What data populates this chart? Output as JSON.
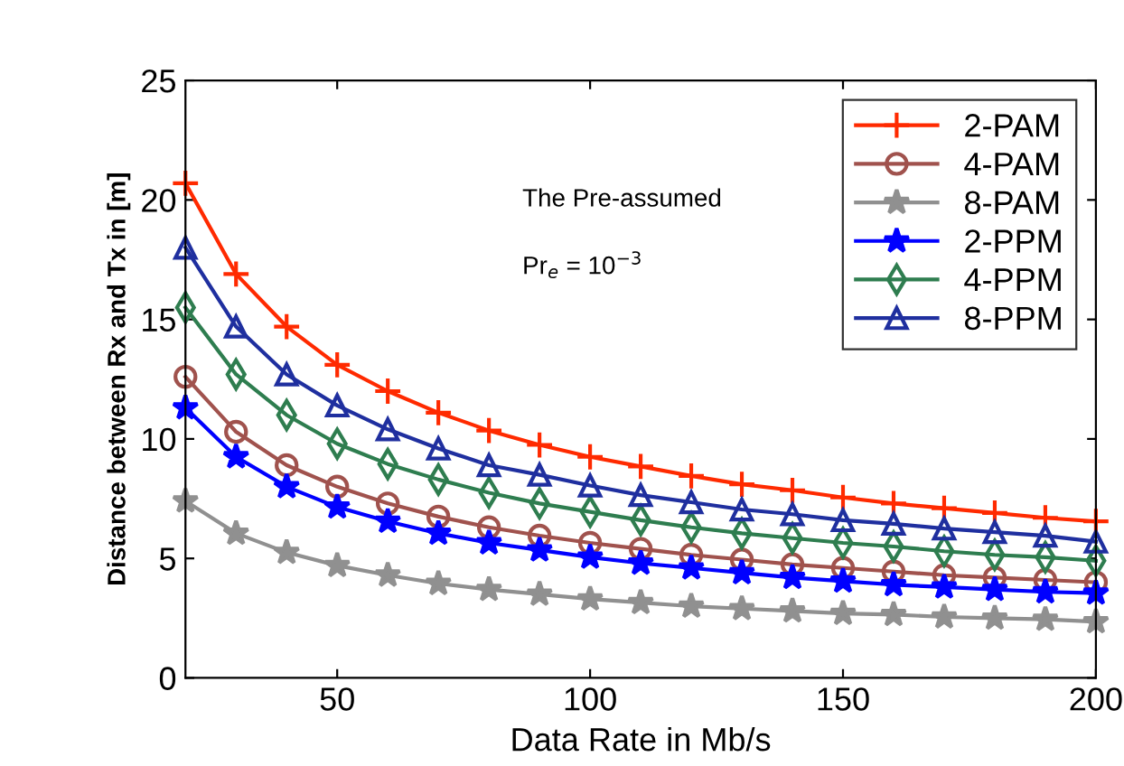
{
  "chart_data": {
    "type": "line",
    "xlabel": "Data Rate in Mb/s",
    "ylabel": "Distance between Rx and Tx in [m]",
    "x": [
      20,
      30,
      40,
      50,
      60,
      70,
      80,
      90,
      100,
      110,
      120,
      130,
      140,
      150,
      160,
      170,
      180,
      190,
      200
    ],
    "series": [
      {
        "name": "2-PAM",
        "color": "#ff2a00",
        "marker": "cross",
        "values": [
          20.7,
          16.9,
          14.7,
          13.1,
          12.0,
          11.1,
          10.35,
          9.75,
          9.25,
          8.85,
          8.45,
          8.1,
          7.85,
          7.55,
          7.3,
          7.1,
          6.9,
          6.7,
          6.55
        ]
      },
      {
        "name": "4-PAM",
        "color": "#a0524d",
        "marker": "circle",
        "values": [
          12.6,
          10.3,
          8.9,
          8.0,
          7.3,
          6.75,
          6.3,
          5.95,
          5.65,
          5.4,
          5.15,
          4.95,
          4.75,
          4.6,
          4.45,
          4.3,
          4.2,
          4.1,
          4.0
        ]
      },
      {
        "name": "8-PAM",
        "color": "#909090",
        "marker": "star",
        "values": [
          7.4,
          6.05,
          5.25,
          4.7,
          4.3,
          3.95,
          3.7,
          3.5,
          3.3,
          3.15,
          3.0,
          2.9,
          2.8,
          2.7,
          2.65,
          2.55,
          2.5,
          2.45,
          2.35
        ]
      },
      {
        "name": "2-PPM",
        "color": "#0000ff",
        "marker": "star",
        "values": [
          11.3,
          9.25,
          8.0,
          7.15,
          6.55,
          6.05,
          5.65,
          5.35,
          5.05,
          4.8,
          4.6,
          4.4,
          4.2,
          4.05,
          3.9,
          3.8,
          3.7,
          3.6,
          3.55
        ]
      },
      {
        "name": "4-PPM",
        "color": "#2e7d4f",
        "marker": "diamond",
        "values": [
          15.5,
          12.7,
          11.0,
          9.8,
          8.95,
          8.3,
          7.75,
          7.3,
          6.95,
          6.6,
          6.3,
          6.05,
          5.85,
          5.65,
          5.5,
          5.3,
          5.15,
          5.05,
          4.9
        ]
      },
      {
        "name": "8-PPM",
        "color": "#1f2f9f",
        "marker": "triangle",
        "values": [
          18.0,
          14.7,
          12.7,
          11.4,
          10.4,
          9.6,
          8.9,
          8.5,
          8.05,
          7.65,
          7.35,
          7.05,
          6.85,
          6.6,
          6.45,
          6.25,
          6.1,
          5.95,
          5.7
        ]
      }
    ],
    "xlim": [
      20,
      200
    ],
    "xticks": [
      50,
      100,
      150,
      200
    ],
    "ylim": [
      0,
      25
    ],
    "yticks": [
      0,
      5,
      10,
      15,
      20,
      25
    ],
    "grid": false,
    "legend": "top right",
    "line_style": "solid",
    "annotations": [
      "The Pre-assumed",
      "Pr$_{e}$ = 10$^{−3}$"
    ]
  }
}
